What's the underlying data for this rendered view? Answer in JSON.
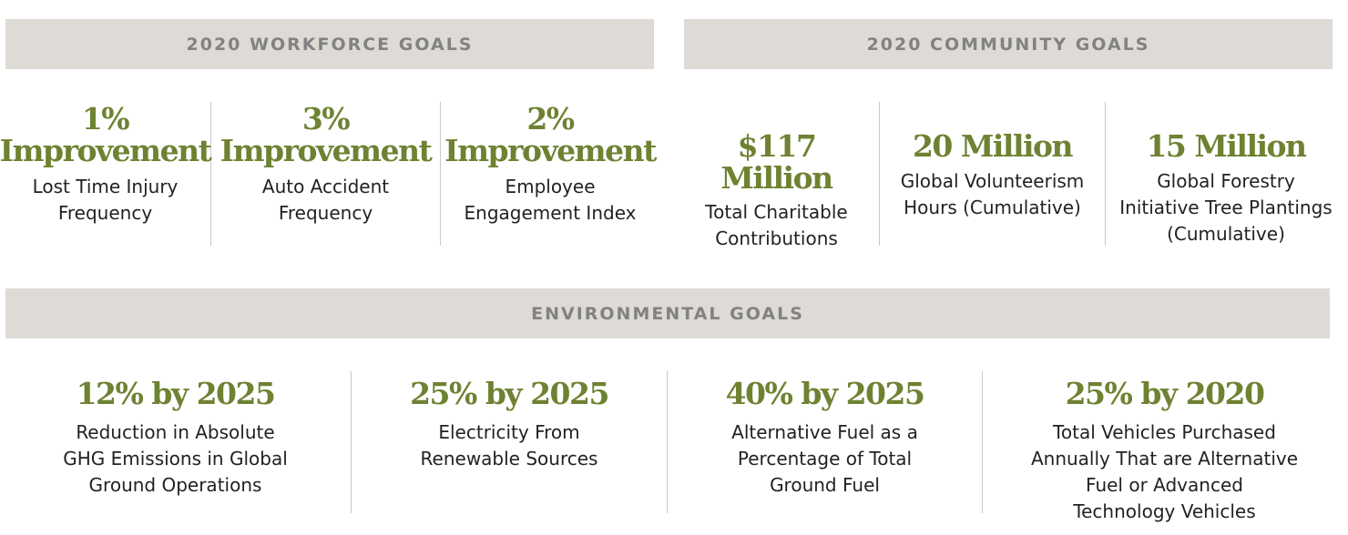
{
  "workforce": {
    "title": "2020 WORKFORCE GOALS",
    "items": [
      {
        "value_top": "1%",
        "value_bottom": "Improvement",
        "desc_line1": "Lost Time Injury",
        "desc_line2": "Frequency"
      },
      {
        "value_top": "3%",
        "value_bottom": "Improvement",
        "desc_line1": "Auto Accident",
        "desc_line2": "Frequency"
      },
      {
        "value_top": "2%",
        "value_bottom": "Improvement",
        "desc_line1": "Employee",
        "desc_line2": "Engagement Index"
      }
    ]
  },
  "community": {
    "title": "2020 COMMUNITY GOALS",
    "items": [
      {
        "value": "$117 Million",
        "desc_line1": "Total Charitable",
        "desc_line2": "Contributions",
        "desc_line3": ""
      },
      {
        "value": "20 Million",
        "desc_line1": "Global Volunteerism",
        "desc_line2": "Hours (Cumulative)",
        "desc_line3": ""
      },
      {
        "value": "15 Million",
        "desc_line1": "Global Forestry",
        "desc_line2": "Initiative Tree Plantings",
        "desc_line3": "(Cumulative)"
      }
    ]
  },
  "environmental": {
    "title": "ENVIRONMENTAL GOALS",
    "items": [
      {
        "value": "12% by 2025",
        "desc_line1": "Reduction in Absolute",
        "desc_line2": "GHG Emissions in Global",
        "desc_line3": "Ground Operations",
        "desc_line4": ""
      },
      {
        "value": "25% by 2025",
        "desc_line1": "Electricity From",
        "desc_line2": "Renewable Sources",
        "desc_line3": "",
        "desc_line4": ""
      },
      {
        "value": "40% by 2025",
        "desc_line1": "Alternative Fuel as a",
        "desc_line2": "Percentage of Total",
        "desc_line3": "Ground Fuel",
        "desc_line4": ""
      },
      {
        "value": "25% by 2020",
        "desc_line1": "Total Vehicles Purchased",
        "desc_line2": "Annually That are Alternative",
        "desc_line3": "Fuel or Advanced",
        "desc_line4": "Technology Vehicles"
      }
    ]
  }
}
